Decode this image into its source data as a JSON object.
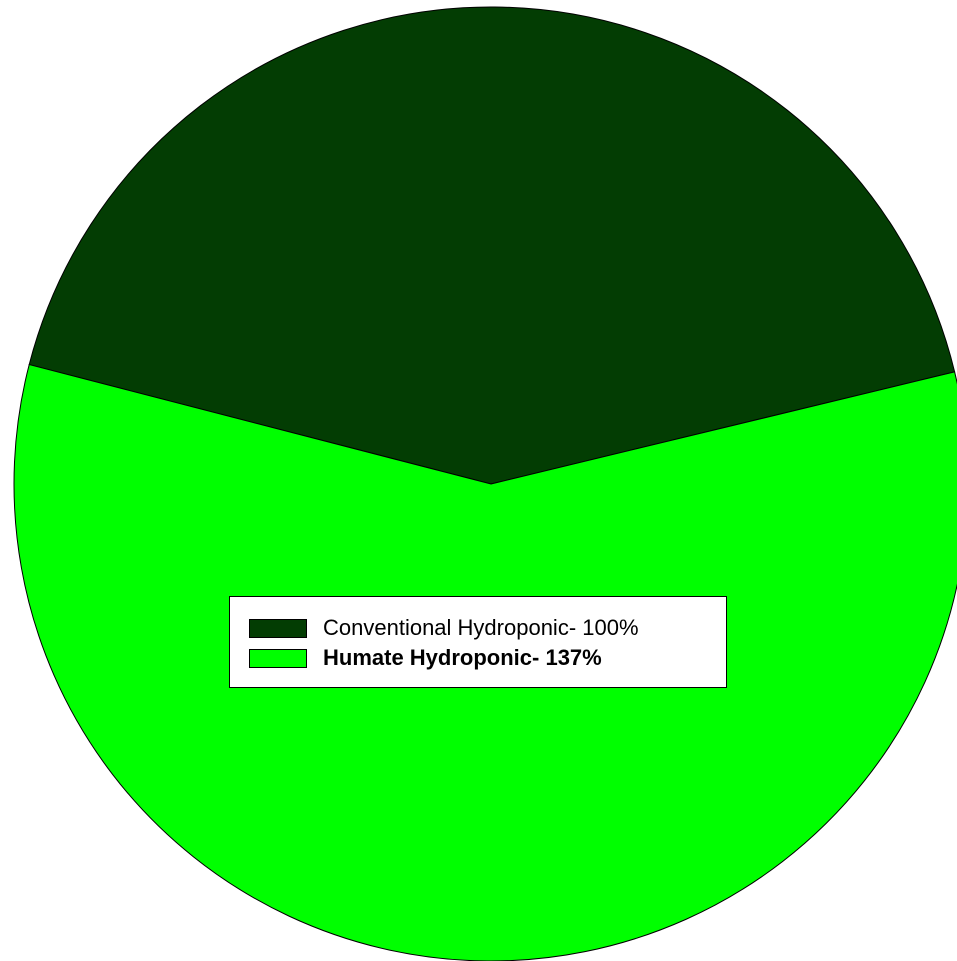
{
  "chart_data": {
    "type": "pie",
    "slices": [
      {
        "label": "Conventional Hydroponic- 100%",
        "value": 100,
        "color": "#033d03"
      },
      {
        "label": "Humate Hydroponic- 137%",
        "value": 137,
        "color": "#00ff00",
        "label_bold": true
      }
    ],
    "legend_placement": "center"
  }
}
